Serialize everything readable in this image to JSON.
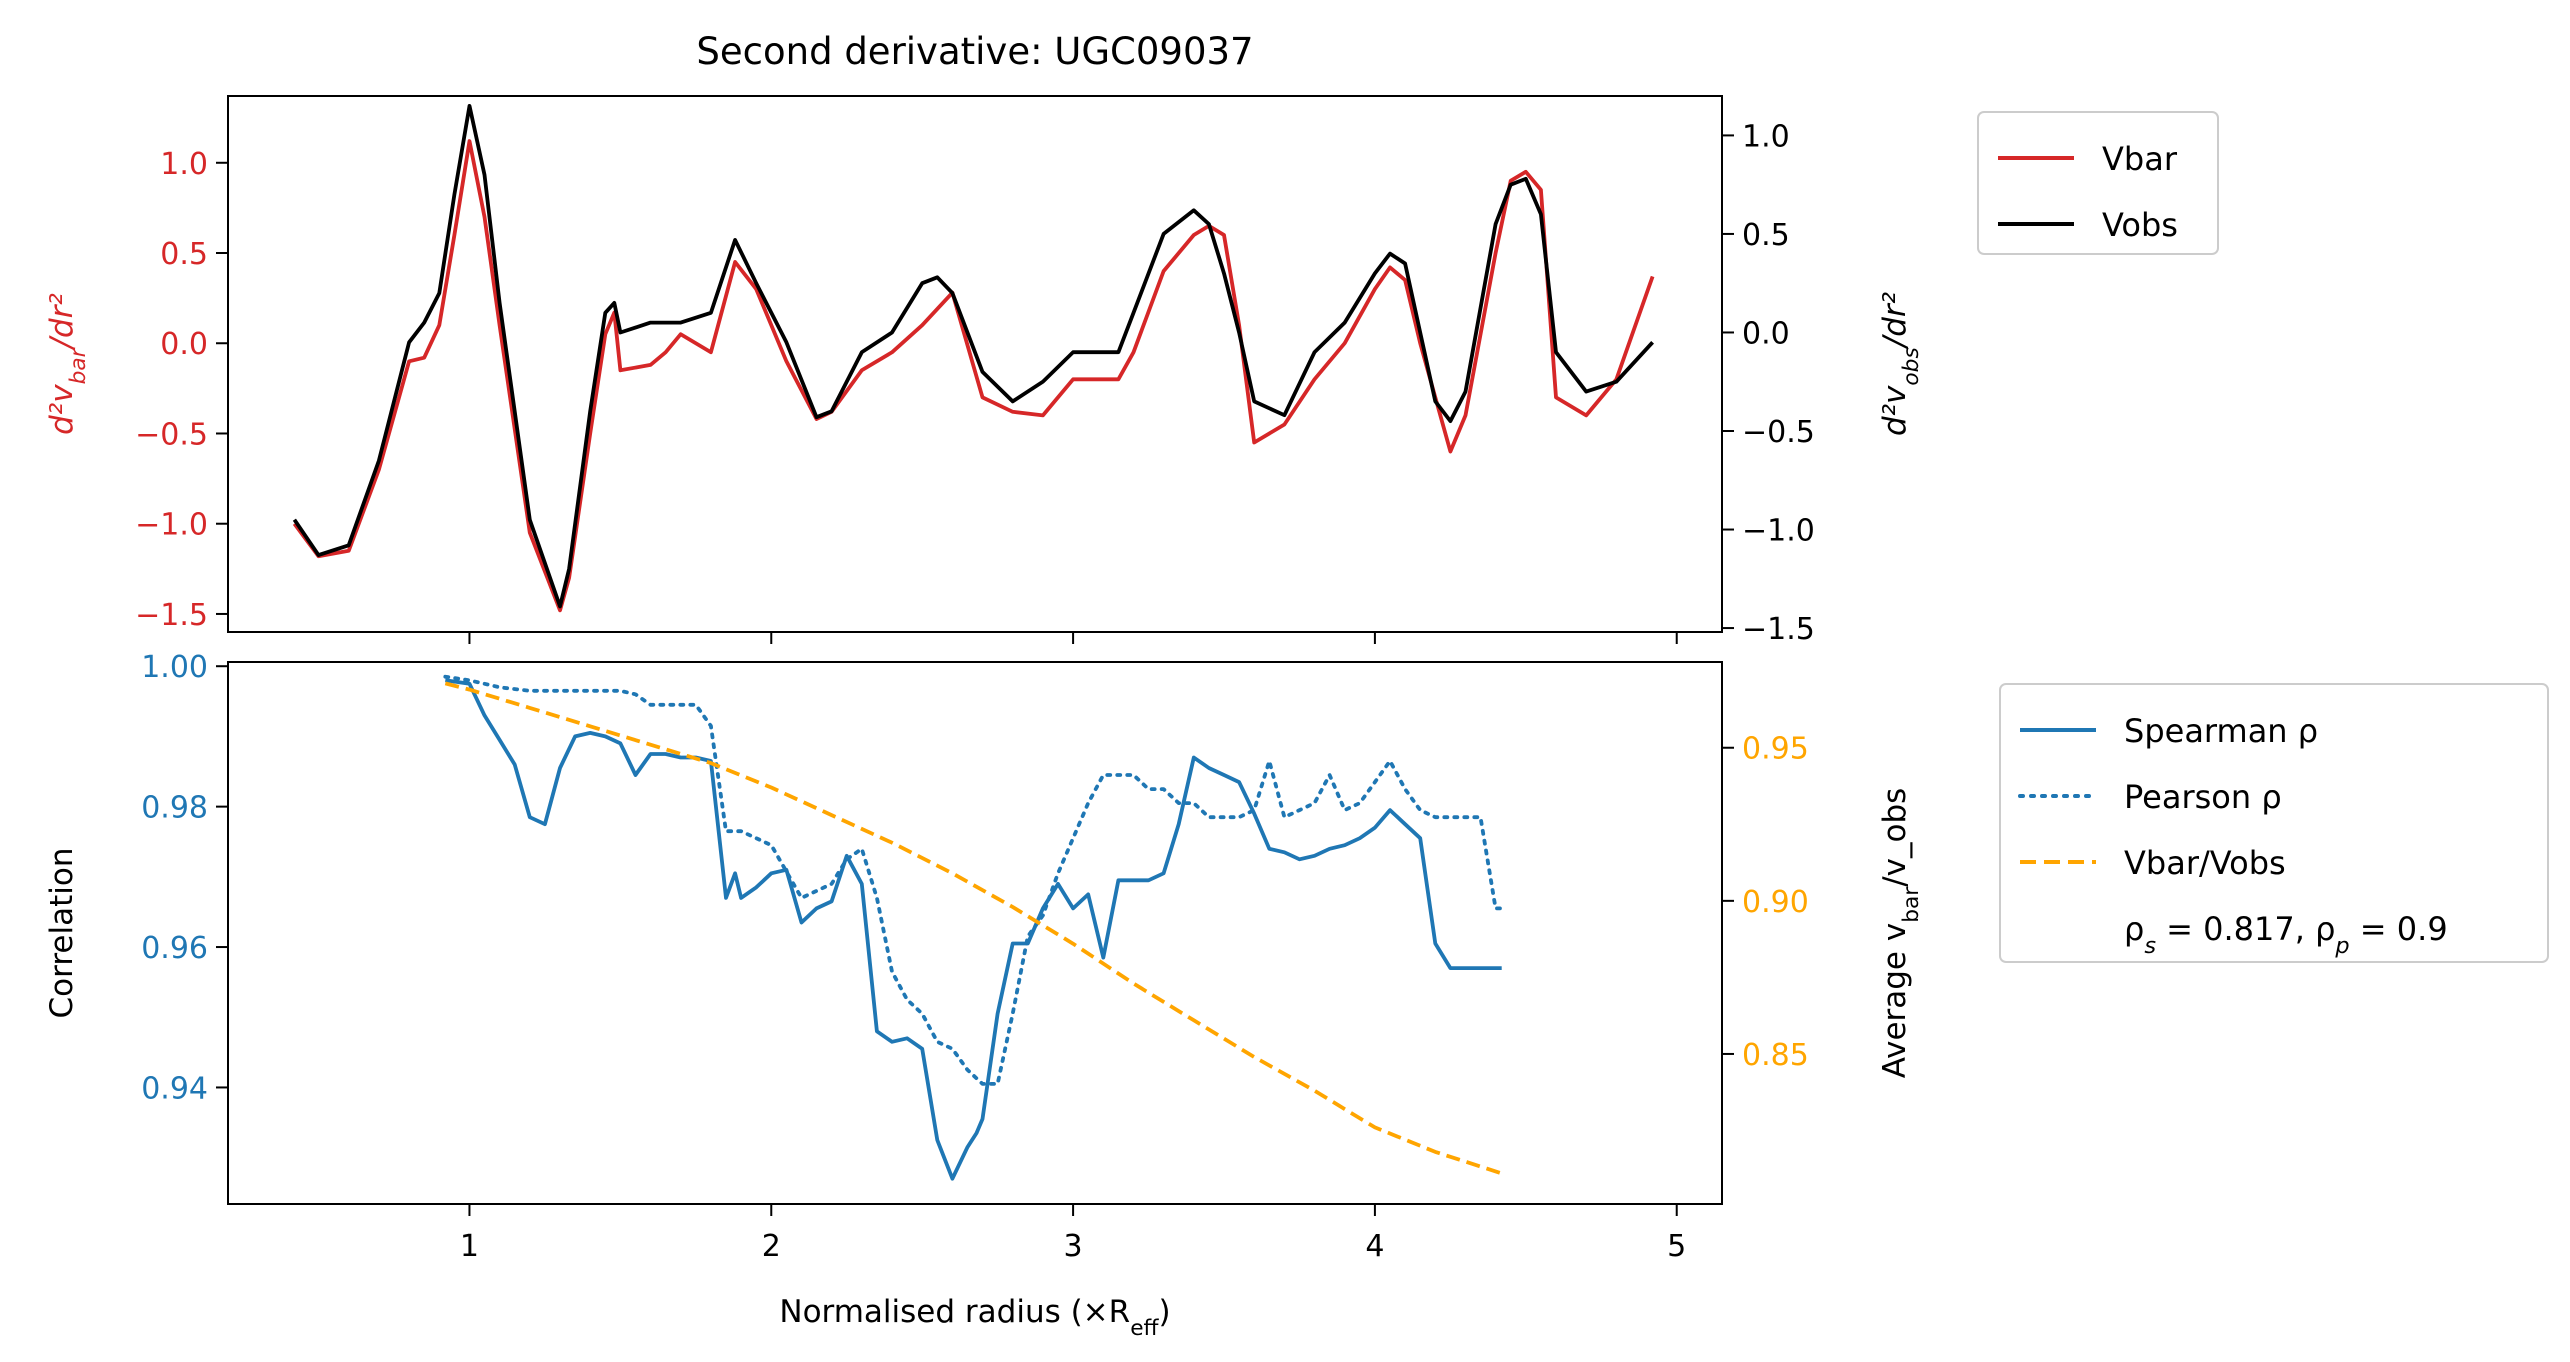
{
  "colors": {
    "vbar": "#d62728",
    "vobs": "#000000",
    "spearman": "#1f77b4",
    "pearson": "#1f77b4",
    "ratio": "#ffa500"
  },
  "chart_data": [
    {
      "type": "line",
      "title": "Second derivative: UGC09037",
      "ylabel_left": "d²v_bar/dr²",
      "ylabel_right": "d²v_obs/dr²",
      "xlim": [
        0.2,
        5.15
      ],
      "ylim_left": [
        -1.6,
        1.37
      ],
      "ylim_right": [
        -1.52,
        1.2
      ],
      "yticks_left": [
        1.0,
        0.5,
        0.0,
        -0.5,
        -1.0,
        -1.5
      ],
      "yticks_left_labels": [
        "1.0",
        "0.5",
        "0.0",
        "−0.5",
        "−1.0",
        "−1.5"
      ],
      "yticks_right": [
        1.0,
        0.5,
        0.0,
        -0.5,
        -1.0,
        -1.5
      ],
      "yticks_right_labels": [
        "1.0",
        "0.5",
        "0.0",
        "−0.5",
        "−1.0",
        "−1.5"
      ],
      "legend": [
        "Vbar",
        "Vobs"
      ],
      "legend_position": "outside-top-right",
      "series": [
        {
          "name": "Vbar",
          "axis": "left",
          "x": [
            0.42,
            0.5,
            0.6,
            0.7,
            0.8,
            0.85,
            0.9,
            0.95,
            1.0,
            1.05,
            1.1,
            1.2,
            1.3,
            1.33,
            1.4,
            1.45,
            1.48,
            1.5,
            1.6,
            1.65,
            1.7,
            1.8,
            1.88,
            1.95,
            2.05,
            2.15,
            2.2,
            2.3,
            2.4,
            2.5,
            2.6,
            2.7,
            2.8,
            2.9,
            3.0,
            3.1,
            3.15,
            3.2,
            3.3,
            3.4,
            3.45,
            3.5,
            3.55,
            3.6,
            3.7,
            3.8,
            3.9,
            4.0,
            4.05,
            4.1,
            4.15,
            4.2,
            4.25,
            4.3,
            4.4,
            4.45,
            4.5,
            4.55,
            4.6,
            4.7,
            4.8,
            4.92
          ],
          "y": [
            -1.0,
            -1.18,
            -1.15,
            -0.7,
            -0.1,
            -0.08,
            0.1,
            0.6,
            1.12,
            0.7,
            0.1,
            -1.05,
            -1.48,
            -1.3,
            -0.5,
            0.05,
            0.17,
            -0.15,
            -0.12,
            -0.05,
            0.05,
            -0.05,
            0.45,
            0.3,
            -0.1,
            -0.42,
            -0.38,
            -0.15,
            -0.05,
            0.1,
            0.28,
            -0.3,
            -0.38,
            -0.4,
            -0.2,
            -0.2,
            -0.2,
            -0.05,
            0.4,
            0.6,
            0.65,
            0.6,
            0.1,
            -0.55,
            -0.45,
            -0.2,
            0.0,
            0.3,
            0.42,
            0.35,
            0.0,
            -0.3,
            -0.6,
            -0.4,
            0.5,
            0.9,
            0.95,
            0.85,
            -0.3,
            -0.4,
            -0.2,
            0.37
          ]
        },
        {
          "name": "Vobs",
          "axis": "right",
          "x": [
            0.42,
            0.5,
            0.6,
            0.7,
            0.8,
            0.85,
            0.9,
            0.95,
            1.0,
            1.05,
            1.1,
            1.2,
            1.3,
            1.33,
            1.4,
            1.45,
            1.48,
            1.5,
            1.6,
            1.65,
            1.7,
            1.8,
            1.88,
            1.95,
            2.05,
            2.15,
            2.2,
            2.3,
            2.4,
            2.5,
            2.55,
            2.6,
            2.7,
            2.8,
            2.9,
            3.0,
            3.1,
            3.15,
            3.2,
            3.3,
            3.4,
            3.45,
            3.5,
            3.55,
            3.6,
            3.7,
            3.8,
            3.9,
            4.0,
            4.05,
            4.1,
            4.15,
            4.2,
            4.25,
            4.3,
            4.4,
            4.45,
            4.5,
            4.55,
            4.6,
            4.7,
            4.8,
            4.92
          ],
          "y": [
            -0.95,
            -1.13,
            -1.08,
            -0.65,
            -0.05,
            0.05,
            0.2,
            0.7,
            1.15,
            0.8,
            0.15,
            -0.95,
            -1.39,
            -1.2,
            -0.4,
            0.1,
            0.15,
            0.0,
            0.05,
            0.05,
            0.05,
            0.1,
            0.47,
            0.25,
            -0.05,
            -0.43,
            -0.4,
            -0.1,
            0.0,
            0.25,
            0.28,
            0.2,
            -0.2,
            -0.35,
            -0.25,
            -0.1,
            -0.1,
            -0.1,
            0.1,
            0.5,
            0.62,
            0.55,
            0.3,
            0.0,
            -0.35,
            -0.42,
            -0.1,
            0.05,
            0.3,
            0.4,
            0.35,
            0.0,
            -0.35,
            -0.45,
            -0.3,
            0.55,
            0.75,
            0.78,
            0.6,
            -0.1,
            -0.3,
            -0.25,
            -0.05
          ]
        }
      ]
    },
    {
      "type": "line",
      "xlabel": "Normalised radius (×R_eff)",
      "ylabel_left": "Correlation",
      "ylabel_right": "Average v_bar/v_obs",
      "xlim": [
        0.2,
        5.15
      ],
      "xticks": [
        1,
        2,
        3,
        4,
        5
      ],
      "xtick_labels": [
        "1",
        "2",
        "3",
        "4",
        "5"
      ],
      "ylim_left": [
        0.9234,
        1.0006
      ],
      "ylim_right": [
        0.801,
        0.978
      ],
      "yticks_left": [
        1.0,
        0.98,
        0.96,
        0.94
      ],
      "yticks_left_labels": [
        "1.00",
        "0.98",
        "0.96",
        "0.94"
      ],
      "yticks_right": [
        0.95,
        0.9,
        0.85
      ],
      "yticks_right_labels": [
        "0.95",
        "0.90",
        "0.85"
      ],
      "legend": [
        "Spearman ρ",
        "Pearson ρ",
        "Vbar/Vobs",
        "ρ_s = 0.817, ρ_p = 0.9"
      ],
      "legend_position": "outside-right",
      "series": [
        {
          "name": "Spearman ρ",
          "axis": "left",
          "style": "solid",
          "x": [
            0.92,
            1.0,
            1.05,
            1.1,
            1.15,
            1.2,
            1.25,
            1.3,
            1.35,
            1.4,
            1.45,
            1.5,
            1.55,
            1.6,
            1.65,
            1.7,
            1.75,
            1.8,
            1.85,
            1.88,
            1.9,
            1.95,
            2.0,
            2.05,
            2.1,
            2.15,
            2.2,
            2.25,
            2.3,
            2.35,
            2.4,
            2.45,
            2.5,
            2.55,
            2.6,
            2.65,
            2.68,
            2.7,
            2.75,
            2.8,
            2.85,
            2.9,
            2.95,
            3.0,
            3.05,
            3.1,
            3.15,
            3.2,
            3.25,
            3.3,
            3.35,
            3.4,
            3.45,
            3.5,
            3.55,
            3.6,
            3.65,
            3.7,
            3.75,
            3.8,
            3.85,
            3.9,
            3.95,
            4.0,
            4.05,
            4.1,
            4.15,
            4.2,
            4.25,
            4.3,
            4.35,
            4.4,
            4.42
          ],
          "y": [
            0.998,
            0.9975,
            0.993,
            0.9895,
            0.986,
            0.9785,
            0.9775,
            0.9855,
            0.99,
            0.9905,
            0.99,
            0.989,
            0.9845,
            0.9875,
            0.9875,
            0.987,
            0.987,
            0.9865,
            0.967,
            0.9705,
            0.967,
            0.9685,
            0.9705,
            0.971,
            0.9635,
            0.9655,
            0.9665,
            0.973,
            0.969,
            0.948,
            0.9465,
            0.947,
            0.9455,
            0.9325,
            0.927,
            0.9315,
            0.9335,
            0.9355,
            0.9505,
            0.9605,
            0.9605,
            0.9655,
            0.969,
            0.9655,
            0.9675,
            0.9585,
            0.9695,
            0.9695,
            0.9695,
            0.9705,
            0.9775,
            0.987,
            0.9855,
            0.9845,
            0.9835,
            0.979,
            0.974,
            0.9735,
            0.9725,
            0.973,
            0.974,
            0.9745,
            0.9755,
            0.977,
            0.9795,
            0.9775,
            0.9755,
            0.9605,
            0.957,
            0.957,
            0.957,
            0.957,
            0.957
          ]
        },
        {
          "name": "Pearson ρ",
          "axis": "left",
          "style": "dotted",
          "x": [
            0.92,
            1.0,
            1.1,
            1.2,
            1.3,
            1.4,
            1.5,
            1.55,
            1.6,
            1.7,
            1.75,
            1.8,
            1.85,
            1.9,
            2.0,
            2.1,
            2.2,
            2.25,
            2.3,
            2.35,
            2.4,
            2.45,
            2.5,
            2.55,
            2.6,
            2.65,
            2.7,
            2.75,
            2.8,
            2.85,
            2.9,
            2.95,
            3.0,
            3.05,
            3.1,
            3.15,
            3.2,
            3.25,
            3.3,
            3.35,
            3.4,
            3.45,
            3.5,
            3.55,
            3.6,
            3.65,
            3.7,
            3.75,
            3.8,
            3.85,
            3.9,
            3.95,
            4.0,
            4.05,
            4.1,
            4.15,
            4.2,
            4.25,
            4.3,
            4.35,
            4.4,
            4.42
          ],
          "y": [
            0.9985,
            0.998,
            0.997,
            0.9965,
            0.9965,
            0.9965,
            0.9965,
            0.996,
            0.9945,
            0.9945,
            0.9945,
            0.9915,
            0.9765,
            0.9765,
            0.9745,
            0.967,
            0.969,
            0.9725,
            0.974,
            0.967,
            0.9565,
            0.9525,
            0.9505,
            0.9465,
            0.9455,
            0.9425,
            0.9405,
            0.9405,
            0.9505,
            0.9615,
            0.9645,
            0.9705,
            0.9755,
            0.9805,
            0.9845,
            0.9845,
            0.9845,
            0.9825,
            0.9825,
            0.9805,
            0.9805,
            0.9785,
            0.9785,
            0.9785,
            0.9795,
            0.9865,
            0.9785,
            0.9795,
            0.9805,
            0.9845,
            0.9795,
            0.9805,
            0.9835,
            0.9865,
            0.9825,
            0.9795,
            0.9785,
            0.9785,
            0.9785,
            0.9785,
            0.9655,
            0.9655
          ]
        },
        {
          "name": "Vbar/Vobs",
          "axis": "right",
          "style": "dashed",
          "x": [
            0.92,
            1.0,
            1.2,
            1.4,
            1.6,
            1.8,
            2.0,
            2.2,
            2.4,
            2.6,
            2.8,
            3.0,
            3.2,
            3.4,
            3.6,
            3.8,
            4.0,
            4.2,
            4.42
          ],
          "y": [
            0.971,
            0.969,
            0.963,
            0.957,
            0.951,
            0.945,
            0.937,
            0.928,
            0.919,
            0.909,
            0.898,
            0.886,
            0.873,
            0.861,
            0.849,
            0.838,
            0.826,
            0.818,
            0.811
          ]
        }
      ]
    }
  ]
}
